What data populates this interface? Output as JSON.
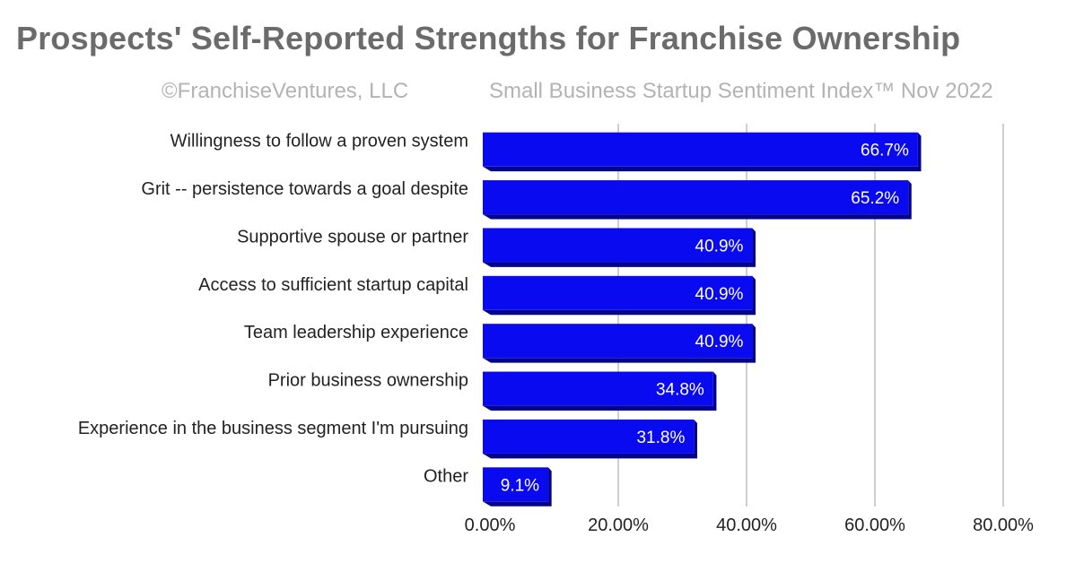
{
  "header": {
    "title": "Prospects' Self-Reported Strengths for Franchise Ownership",
    "copyright": "©FranchiseVentures, LLC",
    "index_label": "Small Business Startup Sentiment Index™  Nov 2022"
  },
  "colors": {
    "bar_front": "#0a0af0",
    "bar_shadow": "#05058c",
    "gridline": "#cfcfcf"
  },
  "chart_data": {
    "type": "bar",
    "orientation": "horizontal",
    "title": "Prospects' Self-Reported Strengths for Franchise Ownership",
    "categories": [
      "Willingness to follow a proven system",
      "Grit -- persistence towards a goal despite",
      "Supportive spouse or partner",
      "Access to sufficient startup capital",
      "Team leadership experience",
      "Prior business ownership",
      "Experience in the business segment I'm pursuing",
      "Other"
    ],
    "values": [
      66.7,
      65.2,
      40.9,
      40.9,
      40.9,
      34.8,
      31.8,
      9.1
    ],
    "value_labels": [
      "66.7%",
      "65.2%",
      "40.9%",
      "40.9%",
      "40.9%",
      "34.8%",
      "31.8%",
      "9.1%"
    ],
    "xlim": [
      0,
      80
    ],
    "x_ticks": [
      0,
      20,
      40,
      60,
      80
    ],
    "x_tick_labels": [
      "0.00%",
      "20.00%",
      "40.00%",
      "60.00%",
      "80.00%"
    ],
    "grid": true,
    "legend": "none"
  }
}
